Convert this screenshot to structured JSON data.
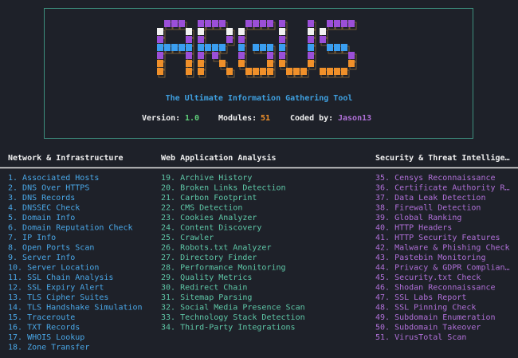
{
  "banner": {
    "tagline": "The Ultimate Information Gathering Tool",
    "version_label": "Version:",
    "version": "1.0",
    "modules_label": "Modules:",
    "modules": "51",
    "author_label": "Coded by:",
    "author": "Jason13"
  },
  "columns": [
    {
      "header": "Network & Infrastructure",
      "items": [
        "1. Associated Hosts",
        "2. DNS Over HTTPS",
        "3. DNS Records",
        "4. DNSSEC Check",
        "5. Domain Info",
        "6. Domain Reputation Check",
        "7. IP Info",
        "8. Open Ports Scan",
        "9. Server Info",
        "10. Server Location",
        "11. SSL Chain Analysis",
        "12. SSL Expiry Alert",
        "13. TLS Cipher Suites",
        "14. TLS Handshake Simulation",
        "15. Traceroute",
        "16. TXT Records",
        "17. WHOIS Lookup",
        "18. Zone Transfer"
      ]
    },
    {
      "header": "Web Application Analysis",
      "items": [
        "19. Archive History",
        "20. Broken Links Detection",
        "21. Carbon Footprint",
        "22. CMS Detection",
        "23. Cookies Analyzer",
        "24. Content Discovery",
        "25. Crawler",
        "26. Robots.txt Analyzer",
        "27. Directory Finder",
        "28. Performance Monitoring",
        "29. Quality Metrics",
        "30. Redirect Chain",
        "31. Sitemap Parsing",
        "32. Social Media Presence Scan",
        "33. Technology Stack Detection",
        "34. Third-Party Integrations"
      ]
    },
    {
      "header": "Security & Threat Intellige…",
      "items": [
        "35. Censys Reconnaissance",
        "36. Certificate Authority R…",
        "37. Data Leak Detection",
        "38. Firewall Detection",
        "39. Global Ranking",
        "40. HTTP Headers",
        "41. HTTP Security Features",
        "42. Malware & Phishing Check",
        "43. Pastebin Monitoring",
        "44. Privacy & GDPR Complian…",
        "45. Security.txt Check",
        "46. Shodan Reconnaissance",
        "47. SSL Labs Report",
        "48. SSL Pinning Check",
        "49. Subdomain Enumeration",
        "50. Subdomain Takeover",
        "51. VirusTotal Scan"
      ]
    }
  ]
}
